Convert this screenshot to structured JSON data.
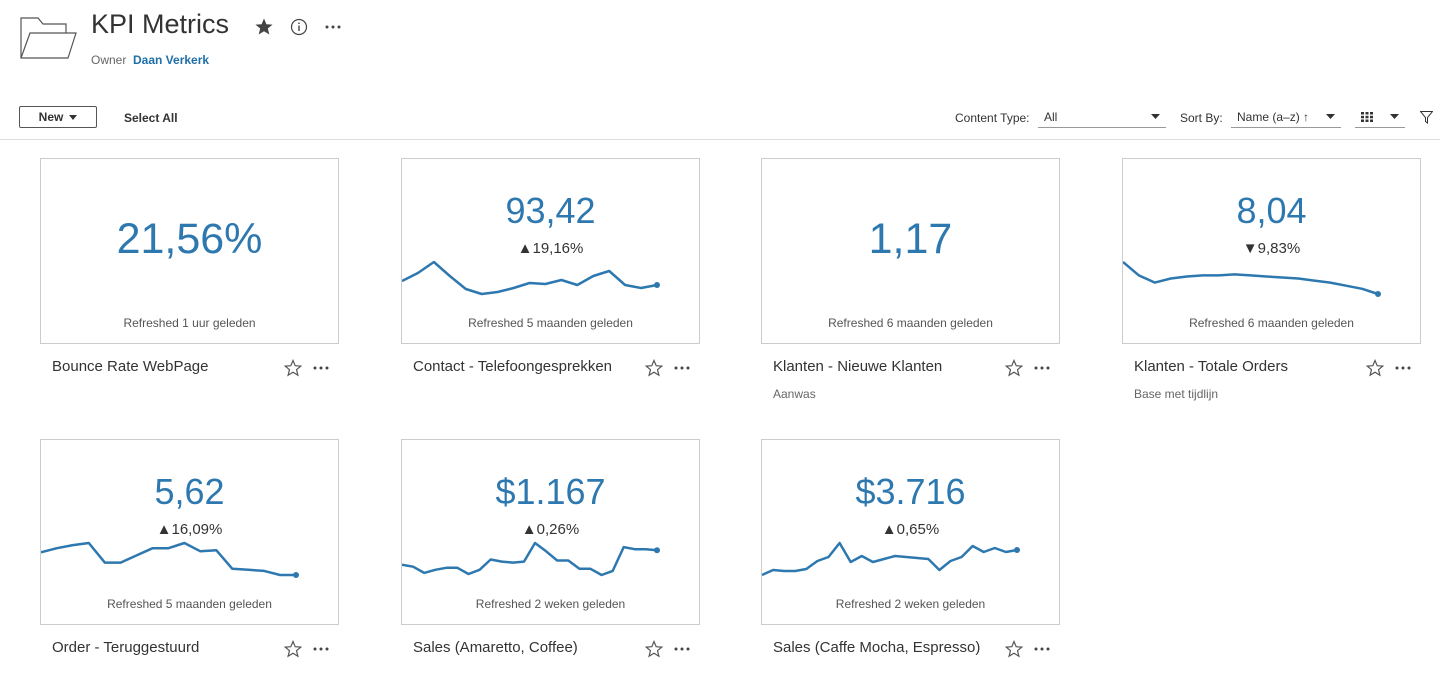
{
  "header": {
    "title": "KPI Metrics",
    "owner_label": "Owner",
    "owner_name": "Daan Verkerk"
  },
  "toolbar": {
    "new_button": "New",
    "select_all": "Select All",
    "content_type_label": "Content Type:",
    "content_type_value": "All",
    "sort_by_label": "Sort By:",
    "sort_by_value": "Name (a–z) ↑"
  },
  "cards": [
    {
      "value": "21,56%",
      "refreshed": "Refreshed 1 uur geleden",
      "name": "Bounce Rate WebPage"
    },
    {
      "value": "93,42",
      "change": "▲19,16%",
      "refreshed": "Refreshed 5 maanden geleden",
      "name": "Contact - Telefoongesprekken",
      "sparkline": [
        13,
        21,
        32,
        18,
        5,
        0,
        2,
        6,
        11,
        10,
        14,
        9,
        18,
        23,
        9,
        6,
        9
      ]
    },
    {
      "value": "1,17",
      "refreshed": "Refreshed 6 maanden geleden",
      "name": "Klanten - Nieuwe Klanten",
      "subtitle": "Aanwas"
    },
    {
      "value": "8,04",
      "change": "▼9,83%",
      "refreshed": "Refreshed 6 maanden geleden",
      "name": "Klanten - Totale Orders",
      "subtitle": "Base met tijdlijn",
      "sparkline": [
        31,
        18,
        11,
        15,
        17,
        18,
        18,
        19,
        18,
        17,
        16,
        15,
        13,
        11,
        8,
        5,
        0
      ]
    },
    {
      "value": "5,62",
      "change": "▲16,09%",
      "refreshed": "Refreshed 5 maanden geleden",
      "name": "Order - Teruggestuurd",
      "sparkline": [
        23,
        27,
        30,
        32,
        13,
        13,
        20,
        27,
        27,
        32,
        24,
        25,
        7,
        6,
        5,
        1,
        1
      ]
    },
    {
      "value": "$1.167",
      "change": "▲0,26%",
      "refreshed": "Refreshed 2 weken geleden",
      "name": "Sales (Amaretto, Coffee)",
      "sparkline": [
        11,
        9,
        3,
        6,
        8,
        8,
        2,
        6,
        16,
        14,
        13,
        14,
        32,
        24,
        15,
        15,
        7,
        7,
        1,
        5,
        28,
        26,
        26,
        25
      ]
    },
    {
      "value": "$3.716",
      "change": "▲0,65%",
      "refreshed": "Refreshed 2 weken geleden",
      "name": "Sales (Caffe Mocha, Espresso)",
      "sparkline": [
        1,
        6,
        5,
        5,
        7,
        15,
        19,
        33,
        14,
        20,
        14,
        17,
        20,
        19,
        18,
        17,
        6,
        15,
        19,
        30,
        24,
        28,
        24,
        26
      ]
    }
  ]
}
